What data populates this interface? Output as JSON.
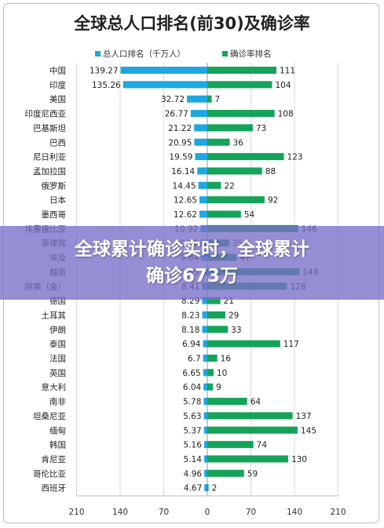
{
  "chart_data": {
    "type": "bar",
    "orientation": "horizontal-diverging",
    "title": "全球总人口排名(前30)及确诊率",
    "categories": [
      "中国",
      "印度",
      "美国",
      "印度尼西亚",
      "巴基斯坦",
      "巴西",
      "尼日利亚",
      "孟加拉国",
      "俄罗斯",
      "日本",
      "墨西哥",
      "埃塞俄比亚",
      "菲律宾",
      "埃及",
      "越南",
      "刚果（金）",
      "德国",
      "土耳其",
      "伊朗",
      "泰国",
      "法国",
      "英国",
      "意大利",
      "南非",
      "坦桑尼亚",
      "缅甸",
      "韩国",
      "肯尼亚",
      "哥伦比亚",
      "西班牙"
    ],
    "series": [
      {
        "name": "总人口排名（千万人）",
        "color": "#1fa7e0",
        "direction": "left",
        "values": [
          139.27,
          135.26,
          32.72,
          26.77,
          21.22,
          20.95,
          19.59,
          16.14,
          14.45,
          12.65,
          12.62,
          10.92,
          10.66,
          9.84,
          9.55,
          8.41,
          8.29,
          8.23,
          8.18,
          6.94,
          6.7,
          6.65,
          6.04,
          5.78,
          5.63,
          5.37,
          5.16,
          5.14,
          4.96,
          4.67
        ]
      },
      {
        "name": "确诊率排名",
        "color": "#15a35a",
        "direction": "right",
        "values": [
          111,
          104,
          7,
          108,
          73,
          36,
          123,
          88,
          22,
          92,
          54,
          146,
          35,
          47,
          148,
          128,
          21,
          29,
          33,
          117,
          16,
          10,
          9,
          64,
          137,
          145,
          74,
          130,
          59,
          2
        ]
      }
    ],
    "x_ticks": [
      "210",
      "140",
      "70",
      "0",
      "70",
      "140",
      "210"
    ],
    "xlim": [
      -210,
      210
    ],
    "grid": "vertical",
    "legend": "top"
  },
  "banner": {
    "line1": "全球累计确诊实时，全球累计",
    "line2": "确诊673万"
  }
}
